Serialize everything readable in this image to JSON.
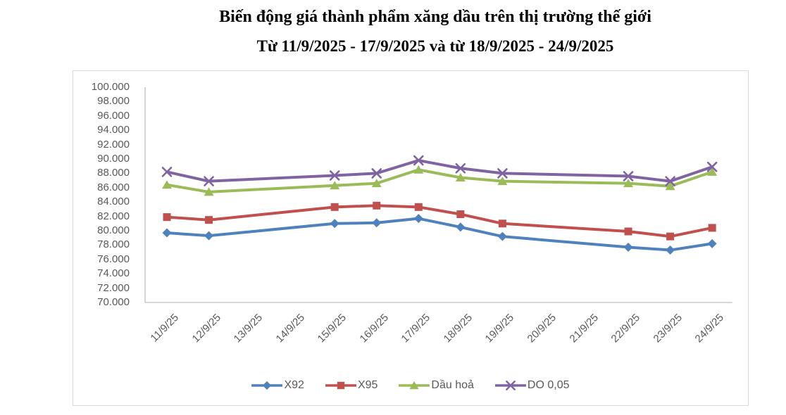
{
  "title": {
    "line1": "Biến động giá thành phẩm xăng dầu trên thị trường thế giới",
    "line2": "Từ 11/9/2025 - 17/9/2025 và từ 18/9/2025 - 24/9/2025"
  },
  "chart_data": {
    "type": "line",
    "categories": [
      "11/9/25",
      "12/9/25",
      "13/9/25",
      "14/9/25",
      "15/9/25",
      "16/9/25",
      "17/9/25",
      "18/9/25",
      "19/9/25",
      "20/9/25",
      "21/9/25",
      "22/9/25",
      "23/9/25",
      "24/9/25"
    ],
    "series": [
      {
        "name": "X92",
        "color": "#4F81BD",
        "marker": "diamond",
        "values": [
          79.7,
          79.3,
          null,
          null,
          81.0,
          81.1,
          81.7,
          80.5,
          79.2,
          null,
          null,
          77.7,
          77.3,
          78.2
        ]
      },
      {
        "name": "X95",
        "color": "#C0504D",
        "marker": "square",
        "values": [
          81.9,
          81.5,
          null,
          null,
          83.3,
          83.5,
          83.3,
          82.3,
          81.0,
          null,
          null,
          79.9,
          79.2,
          80.4
        ]
      },
      {
        "name": "Dầu hoả",
        "color": "#9BBB59",
        "marker": "triangle",
        "values": [
          86.4,
          85.4,
          null,
          null,
          86.3,
          86.6,
          88.5,
          87.4,
          86.9,
          null,
          null,
          86.6,
          86.2,
          88.2
        ]
      },
      {
        "name": "DO 0,05",
        "color": "#8064A2",
        "marker": "x",
        "values": [
          88.2,
          86.9,
          null,
          null,
          87.7,
          88.0,
          89.8,
          88.7,
          88.0,
          null,
          null,
          87.6,
          86.9,
          88.9
        ]
      }
    ],
    "y_axis": {
      "min": 70,
      "max": 100,
      "step": 2,
      "tick_labels": [
        "100.000",
        "98.000",
        "96.000",
        "94.000",
        "92.000",
        "90.000",
        "88.000",
        "86.000",
        "84.000",
        "82.000",
        "80.000",
        "78.000",
        "76.000",
        "74.000",
        "72.000",
        "70.000"
      ]
    },
    "x_axis": {
      "label_rotation_deg": 45
    },
    "legend_position": "bottom",
    "grid": false,
    "axis_color": "#C8C8C8",
    "note": "values in same unit as tick labels; dots in tick labels are thousands-style formatting; weekend dates 13/9, 14/9, 20/9, 21/9 have no data points (lines interpolate straight across)"
  }
}
